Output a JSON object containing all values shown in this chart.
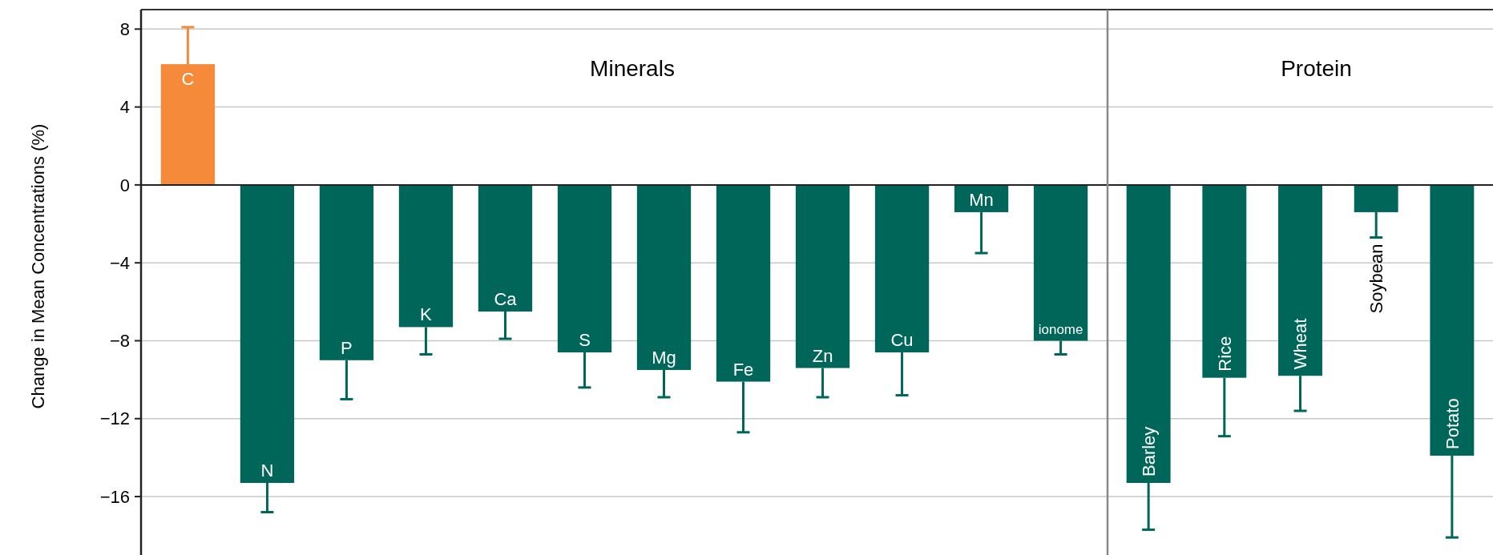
{
  "chart_data": [
    {
      "type": "bar",
      "title": "Minerals",
      "ylabel": "Change in Mean Concentrations (%)",
      "categories": [
        "C",
        "N",
        "P",
        "K",
        "Ca",
        "S",
        "Mg",
        "Fe",
        "Zn",
        "Cu",
        "Mn",
        "ionome"
      ],
      "values": [
        6.2,
        -15.3,
        -9.0,
        -7.3,
        -6.5,
        -8.6,
        -9.5,
        -10.1,
        -9.4,
        -8.6,
        -1.4,
        -8.0
      ],
      "errors": [
        [
          6.2,
          8.1
        ],
        [
          -16.8,
          -15.3
        ],
        [
          -11.0,
          -9.0
        ],
        [
          -8.7,
          -7.3
        ],
        [
          -7.9,
          -6.5
        ],
        [
          -10.4,
          -8.6
        ],
        [
          -10.9,
          -9.5
        ],
        [
          -12.7,
          -10.1
        ],
        [
          -10.9,
          -9.4
        ],
        [
          -10.8,
          -8.6
        ],
        [
          -3.5,
          -1.4
        ],
        [
          -8.7,
          -8.0
        ]
      ],
      "colors": [
        "#f58b3a",
        "#00665a",
        "#00665a",
        "#00665a",
        "#00665a",
        "#00665a",
        "#00665a",
        "#00665a",
        "#00665a",
        "#00665a",
        "#00665a",
        "#00665a"
      ],
      "ylim": [
        -19,
        9
      ],
      "yticks": [
        -16,
        -12,
        -8,
        -4,
        0,
        4,
        8
      ],
      "grid": "y"
    },
    {
      "type": "bar",
      "title": "Protein",
      "categories": [
        "Barley",
        "Rice",
        "Wheat",
        "Soybean",
        "Potato"
      ],
      "values": [
        -15.3,
        -9.9,
        -9.8,
        -1.4,
        -13.9
      ],
      "errors": [
        [
          -17.7,
          -15.3
        ],
        [
          -12.9,
          -9.9
        ],
        [
          -11.6,
          -9.8
        ],
        [
          -2.7,
          -1.4
        ],
        [
          -18.1,
          -13.9
        ]
      ],
      "colors": [
        "#00665a",
        "#00665a",
        "#00665a",
        "#00665a",
        "#00665a"
      ],
      "ylim": [
        -19,
        9
      ],
      "yticks": [
        -16,
        -12,
        -8,
        -4,
        0,
        4,
        8
      ],
      "grid": "y",
      "tick_labels": false
    }
  ]
}
